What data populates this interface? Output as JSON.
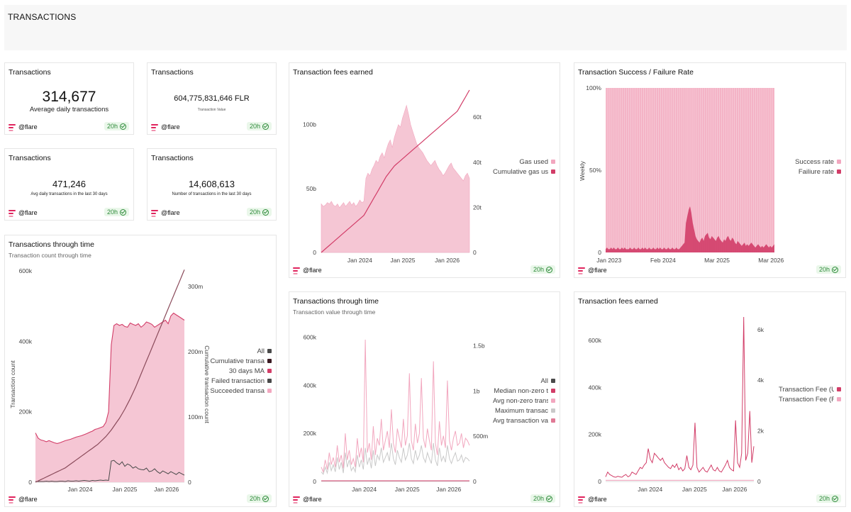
{
  "header": {
    "title": "TRANSACTIONS"
  },
  "brand": "@flare",
  "badge": "20h",
  "kpis": [
    {
      "title": "Transactions",
      "value": "314,677",
      "label": "Average daily transactions"
    },
    {
      "title": "Transactions",
      "value": "604,775,831,646 FLR",
      "label": "Transaction Value"
    },
    {
      "title": "Transactions",
      "value": "471,246",
      "label": "Avg daily transactions in the last 30 days"
    },
    {
      "title": "Transactions",
      "value": "14,608,613",
      "label": "Number of transactions in the last 30 days"
    }
  ],
  "colors": {
    "pink": "#f2a7bf",
    "pinkFill": "#f5c6d4",
    "crimson": "#d23d68",
    "dark": "#4a4a4a",
    "grey": "#c9c9c9",
    "darkRed": "#3a1a22"
  },
  "chart_data": [
    {
      "id": "fees1",
      "type": "area",
      "title": "Transaction fees earned",
      "x_ticks": [
        "Jan 2024",
        "Jan 2025",
        "Jan 2026"
      ],
      "x_tick_pos": [
        0.26,
        0.55,
        0.85
      ],
      "y_left_ticks": [
        "0",
        "50b",
        "100b"
      ],
      "y_left_max": 127,
      "y_right_ticks": [
        "0",
        "20t",
        "40t",
        "60t"
      ],
      "y_right_max": 72,
      "series": [
        {
          "name": "Gas used",
          "values": [
            38,
            36,
            37,
            39,
            38,
            40,
            37,
            36,
            38,
            35,
            37,
            39,
            36,
            38,
            40,
            37,
            39,
            36,
            38,
            41,
            39,
            40,
            58,
            62,
            60,
            65,
            68,
            72,
            70,
            75,
            78,
            74,
            80,
            85,
            88,
            82,
            90,
            95,
            100,
            98,
            105,
            110,
            115,
            108,
            100,
            95,
            90,
            85,
            82,
            80,
            78,
            75,
            72,
            70,
            68,
            70,
            72,
            68,
            65,
            63,
            60,
            62,
            65,
            68,
            70,
            66,
            64,
            62,
            60,
            58,
            56,
            60,
            62,
            58
          ]
        },
        {
          "name": "Cumulative gas us",
          "values": [
            0,
            1,
            2,
            3,
            4,
            5,
            6,
            7,
            8,
            9,
            10,
            11,
            12,
            13,
            14,
            15,
            16,
            17,
            18,
            19,
            20,
            21,
            23,
            25,
            27,
            29,
            31,
            33,
            35,
            37,
            39,
            41,
            43,
            44.5,
            46,
            47.5,
            49,
            50,
            51,
            52,
            53,
            54,
            55,
            56,
            57,
            58,
            59,
            60,
            61,
            62,
            63,
            64,
            65,
            66,
            67,
            68,
            69,
            70,
            71,
            72,
            73,
            74,
            75,
            76,
            77,
            78,
            79,
            80,
            82,
            84,
            86,
            88,
            90,
            92
          ]
        }
      ]
    },
    {
      "id": "success",
      "type": "bar",
      "title": "Transaction Success / Failure Rate",
      "ylabel": "Weekly",
      "x_ticks": [
        "Jan 2023",
        "Feb 2024",
        "Mar 2025",
        "Mar 2026"
      ],
      "x_tick_pos": [
        0.02,
        0.34,
        0.66,
        0.98
      ],
      "y_ticks": [
        "0",
        "50%",
        "100%"
      ],
      "series": [
        {
          "name": "Success rate",
          "values": [
            100
          ]
        },
        {
          "name": "Failiure rate",
          "values": [
            2,
            3,
            2,
            2,
            3,
            2,
            3,
            2,
            2,
            3,
            2,
            2,
            3,
            2,
            3,
            2,
            2,
            2,
            3,
            2,
            2,
            3,
            2,
            2,
            3,
            2,
            2,
            3,
            2,
            3,
            2,
            2,
            3,
            2,
            2,
            3,
            2,
            2,
            3,
            2,
            3,
            2,
            2,
            3,
            2,
            2,
            3,
            2,
            2,
            3,
            2,
            2,
            3,
            2,
            2,
            3,
            4,
            5,
            6,
            18,
            22,
            26,
            28,
            24,
            18,
            14,
            10,
            8,
            7,
            6,
            8,
            9,
            7,
            10,
            11,
            12,
            9,
            8,
            10,
            9,
            8,
            7,
            9,
            10,
            8,
            7,
            6,
            8,
            7,
            9,
            10,
            8,
            7,
            9,
            8,
            6,
            5,
            7,
            6,
            5,
            4,
            5,
            6,
            4,
            5,
            4,
            5,
            6,
            5,
            4,
            3,
            4,
            5,
            4,
            3,
            4,
            3,
            4,
            5,
            4,
            3,
            4,
            3,
            4,
            5
          ]
        }
      ]
    },
    {
      "id": "tx_time",
      "type": "area",
      "title": "Transactions through time",
      "subtitle": "Transaction count through time",
      "ylabel": "Transaction count",
      "y2label": "Cumulative transaction count",
      "x_ticks": [
        "Jan 2024",
        "Jan 2025",
        "Jan 2026"
      ],
      "x_tick_pos": [
        0.3,
        0.6,
        0.88
      ],
      "y_left_ticks": [
        "0",
        "200k",
        "400k",
        "600k"
      ],
      "y_left_max": 620,
      "y_right_ticks": [
        "0",
        "100m",
        "200m",
        "300m"
      ],
      "y_right_max": 335,
      "series": [
        {
          "name": "All",
          "values": []
        },
        {
          "name": "Cumulative transa",
          "values": [
            0,
            2,
            4,
            6,
            8,
            10,
            12,
            14,
            16,
            18,
            20,
            22,
            25,
            28,
            31,
            34,
            37,
            40,
            43,
            46,
            49,
            52,
            55,
            58,
            62,
            66,
            70,
            75,
            80,
            86,
            92,
            98,
            105,
            112,
            120,
            128,
            137,
            146,
            156,
            166,
            176,
            186,
            196,
            206,
            216,
            226,
            236,
            246,
            256,
            266,
            276,
            286,
            296,
            306,
            316,
            326
          ]
        },
        {
          "name": "30 days MA",
          "values": [
            140,
            125,
            120,
            118,
            115,
            118,
            115,
            112,
            110,
            112,
            115,
            118,
            120,
            122,
            125,
            128,
            130,
            132,
            135,
            138,
            142,
            145,
            150,
            152,
            155,
            158,
            170,
            200,
            390,
            445,
            450,
            445,
            448,
            442,
            440,
            452,
            448,
            445,
            450,
            440,
            446,
            455,
            452,
            448,
            440,
            445,
            450,
            455,
            460,
            450,
            472,
            480,
            475,
            470,
            465,
            460
          ]
        },
        {
          "name": "Failed transaction",
          "values": [
            2,
            2,
            2,
            2,
            3,
            2,
            3,
            2,
            2,
            3,
            3,
            2,
            4,
            3,
            3,
            4,
            3,
            4,
            5,
            4,
            3,
            5,
            4,
            5,
            6,
            5,
            6,
            5,
            60,
            62,
            55,
            50,
            58,
            45,
            52,
            48,
            40,
            44,
            38,
            36,
            35,
            40,
            30,
            32,
            38,
            30,
            25,
            32,
            28,
            24,
            30,
            26,
            22,
            28,
            24,
            20
          ]
        },
        {
          "name": "Succeeded transa",
          "values": [
            140,
            125,
            120,
            118,
            115,
            118,
            115,
            112,
            110,
            112,
            115,
            118,
            120,
            122,
            125,
            128,
            130,
            132,
            135,
            138,
            142,
            145,
            150,
            152,
            155,
            158,
            170,
            200,
            390,
            445,
            450,
            445,
            448,
            442,
            440,
            452,
            448,
            445,
            450,
            440,
            446,
            455,
            452,
            448,
            440,
            445,
            450,
            455,
            460,
            450,
            472,
            480,
            475,
            470,
            465,
            460
          ]
        }
      ]
    },
    {
      "id": "tx_value",
      "type": "line",
      "title": "Transactions through time",
      "subtitle": "Transaction value through time",
      "x_ticks": [
        "Jan 2024",
        "Jan 2025",
        "Jan 2026"
      ],
      "x_tick_pos": [
        0.29,
        0.58,
        0.86
      ],
      "y_left_ticks": [
        "0",
        "200k",
        "400k",
        "600k"
      ],
      "y_left_max": 640,
      "y_right_ticks": [
        "0",
        "500m",
        "1b",
        "1.5b"
      ],
      "y_right_max": 1.7,
      "series": [
        {
          "name": "All",
          "values": []
        },
        {
          "name": "Median non-zero t",
          "values": []
        },
        {
          "name": "Avg non-zero trans",
          "values": [
            60,
            40,
            90,
            50,
            120,
            70,
            100,
            60,
            150,
            80,
            110,
            55,
            200,
            90,
            130,
            70,
            95,
            60,
            180,
            100,
            140,
            80,
            590,
            120,
            160,
            90,
            230,
            110,
            180,
            150,
            260,
            130,
            170,
            210,
            140,
            300,
            160,
            120,
            220,
            180,
            140,
            260,
            150,
            190,
            450,
            170,
            130,
            240,
            160,
            200,
            430,
            180,
            140,
            220,
            170,
            130,
            500,
            160,
            110,
            250,
            150,
            190,
            140,
            420,
            170,
            130,
            180,
            210,
            150,
            160,
            200,
            140,
            180,
            170,
            150
          ]
        },
        {
          "name": "Maximum transac",
          "values": [
            40,
            30,
            60,
            35,
            80,
            45,
            70,
            40,
            100,
            50,
            80,
            35,
            120,
            60,
            90,
            45,
            60,
            40,
            110,
            60,
            90,
            50,
            140,
            70,
            100,
            55,
            130,
            65,
            110,
            90,
            140,
            80,
            100,
            120,
            85,
            160,
            95,
            70,
            130,
            100,
            80,
            140,
            90,
            110,
            160,
            95,
            75,
            130,
            90,
            110,
            150,
            100,
            80,
            120,
            95,
            75,
            160,
            90,
            65,
            140,
            85,
            105,
            80,
            150,
            95,
            75,
            100,
            120,
            85,
            90,
            110,
            80,
            100,
            95,
            85
          ]
        },
        {
          "name": "Avg transaction va",
          "values": []
        }
      ]
    },
    {
      "id": "fees2",
      "type": "line",
      "title": "Transaction fees earned",
      "x_ticks": [
        "Jan 2024",
        "Jan 2025",
        "Jan 2026"
      ],
      "x_tick_pos": [
        0.3,
        0.6,
        0.87
      ],
      "y_left_ticks": [
        "0",
        "200k",
        "400k",
        "600k"
      ],
      "y_left_max": 700,
      "y_right_ticks": [
        "0",
        "2k",
        "4k",
        "6k"
      ],
      "y_right_max": 6.5,
      "series": [
        {
          "name": "Transaction Fee (U",
          "values": [
            20,
            40,
            30,
            25,
            20,
            18,
            22,
            20,
            18,
            25,
            30,
            20,
            25,
            40,
            35,
            30,
            45,
            60,
            55,
            70,
            80,
            140,
            95,
            80,
            120,
            110,
            100,
            90,
            100,
            80,
            70,
            60,
            55,
            70,
            60,
            75,
            50,
            60,
            45,
            55,
            110,
            60,
            50,
            70,
            250,
            60,
            40,
            50,
            60,
            45,
            40,
            55,
            70,
            50,
            45,
            60,
            45,
            40,
            55,
            70,
            90,
            60,
            50,
            45,
            260,
            80,
            60,
            120,
            700,
            90,
            120,
            300,
            80,
            150
          ]
        },
        {
          "name": "Transaction Fee (F",
          "values": [
            5,
            5,
            5,
            5,
            5,
            5,
            5,
            5,
            5,
            5,
            5,
            5,
            5,
            5,
            5,
            5,
            5,
            5,
            5,
            5,
            5,
            5,
            5,
            5,
            5,
            5,
            5,
            5,
            5,
            5,
            5,
            5,
            5,
            5,
            5,
            5,
            5,
            5,
            5,
            5,
            5,
            5,
            5,
            5,
            5,
            5,
            5,
            5,
            5,
            5,
            5,
            5,
            5,
            5,
            5,
            5,
            5,
            5,
            5,
            5,
            5,
            5,
            5,
            5,
            5,
            5,
            5,
            5,
            5,
            5,
            5,
            5,
            5,
            5
          ]
        }
      ]
    }
  ]
}
